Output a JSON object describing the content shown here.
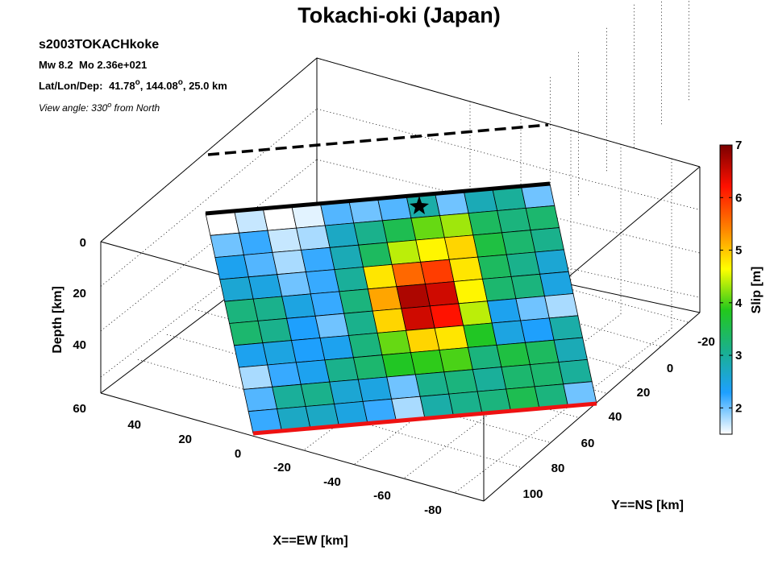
{
  "chart_data": {
    "type": "heatmap",
    "title": "Tokachi-oki (Japan)",
    "event_id": "s2003TOKACHkoke",
    "magnitude": "Mw 8.2",
    "moment": "Mo 2.36e+021",
    "location_label": "Lat/Lon/Dep:",
    "lat": "41.78",
    "lon": "144.08",
    "depth": "25.0 km",
    "degree_sup": "o",
    "view_prefix": "View angle: 330",
    "view_suffix": " from North",
    "xlabel": "X==EW [km]",
    "ylabel": "Y==NS [km]",
    "zlabel": "Depth [km]",
    "colorbar_label": "Slip [m]",
    "x_ticks": [
      "0",
      "-20",
      "-40",
      "-60",
      "-80"
    ],
    "y_ticks": [
      "-20",
      "0",
      "20",
      "40",
      "60",
      "80",
      "100"
    ],
    "z_ticks": [
      "0",
      "20",
      "40",
      "60"
    ],
    "xy_ticks": [
      "60",
      "40",
      "20"
    ],
    "colorbar_ticks": [
      "2",
      "3",
      "4",
      "5",
      "6",
      "7"
    ],
    "colorbar_range": [
      1.5,
      7
    ],
    "colormap": [
      "#ffffff",
      "#1ea0ff",
      "#1ab090",
      "#22c81c",
      "#ffff00",
      "#ff8000",
      "#ff1000",
      "#7a0000"
    ],
    "grid": true,
    "slip": [
      [
        1.5,
        1.7,
        1.5,
        1.6,
        2.1,
        2.0,
        2.1,
        2.9,
        2.0,
        2.8,
        3.0,
        2.0
      ],
      [
        2.0,
        2.2,
        1.7,
        1.8,
        2.7,
        3.1,
        3.5,
        4.1,
        4.3,
        3.4,
        3.2,
        3.3
      ],
      [
        2.4,
        2.1,
        1.8,
        2.2,
        2.8,
        3.4,
        4.4,
        4.7,
        4.9,
        3.6,
        3.3,
        3.1
      ],
      [
        2.6,
        2.5,
        2.0,
        2.2,
        3.0,
        4.8,
        5.6,
        5.9,
        4.8,
        3.4,
        3.1,
        2.6
      ],
      [
        3.2,
        3.1,
        2.5,
        2.2,
        3.2,
        5.2,
        6.7,
        6.5,
        4.7,
        3.3,
        3.2,
        2.5
      ],
      [
        3.3,
        3.1,
        2.3,
        2.0,
        3.1,
        4.9,
        6.5,
        6.2,
        4.4,
        2.4,
        2.0,
        1.8
      ],
      [
        2.4,
        2.5,
        2.3,
        2.4,
        3.2,
        4.1,
        4.9,
        4.8,
        3.8,
        2.5,
        2.3,
        2.9
      ],
      [
        1.8,
        2.2,
        2.4,
        3.1,
        3.3,
        3.8,
        3.9,
        4.0,
        3.2,
        3.6,
        3.4,
        2.8
      ],
      [
        2.1,
        3.0,
        3.1,
        2.6,
        2.5,
        2.0,
        3.1,
        3.2,
        3.0,
        3.3,
        3.3,
        3.0
      ],
      [
        2.2,
        2.7,
        2.7,
        2.5,
        2.2,
        1.8,
        2.9,
        3.1,
        3.2,
        3.5,
        3.2,
        2.0
      ]
    ]
  }
}
